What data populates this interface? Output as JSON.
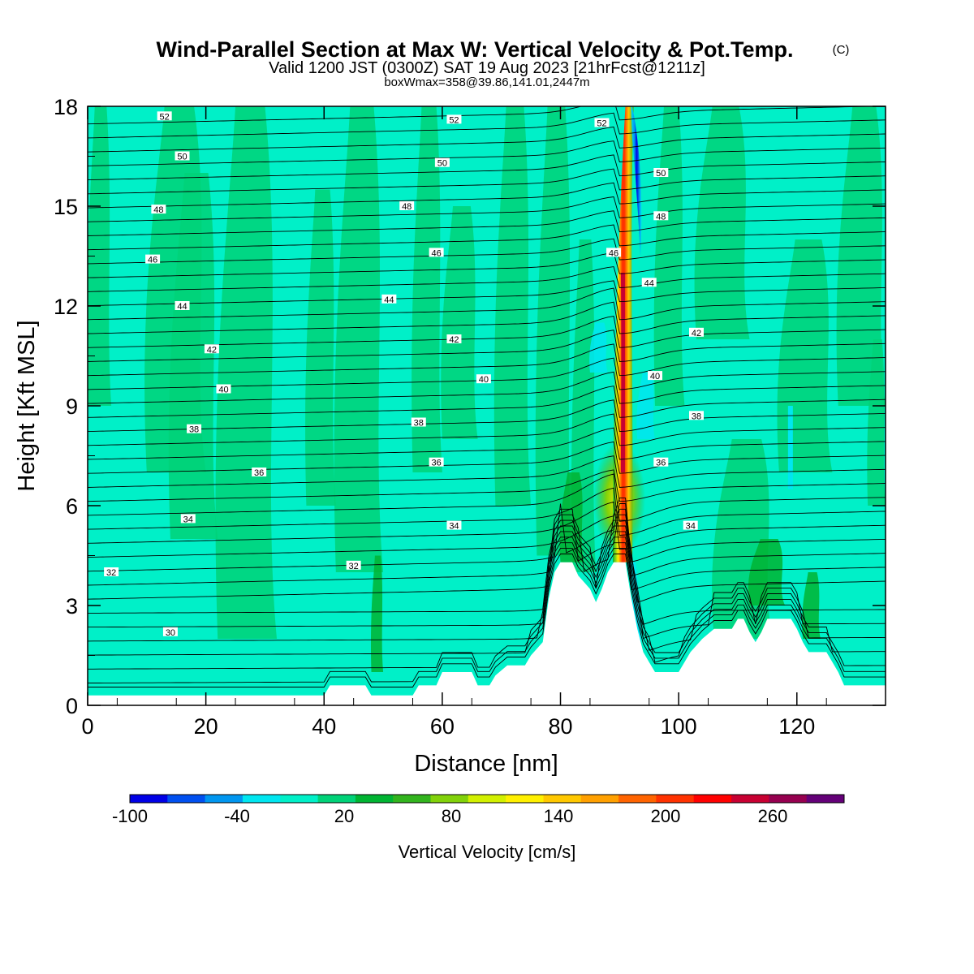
{
  "title": {
    "main": "Wind-Parallel Section at Max W: Vertical Velocity & Pot.Temp.",
    "copyright": "(C)",
    "line2": "Valid 1200 JST (0300Z) SAT 19 Aug 2023 [21hrFcst@1211z]",
    "line3": "boxWmax=358@39.86,141.01,2447m"
  },
  "chart_data": {
    "type": "heatmap",
    "title": "Wind-Parallel Section at Max W: Vertical Velocity & Pot.Temp.",
    "xlabel": "Distance [nm]",
    "ylabel": "Height [Kft MSL]",
    "xlim": [
      0,
      135
    ],
    "ylim": [
      0,
      18
    ],
    "x_ticks": [
      "0",
      "20",
      "40",
      "60",
      "80",
      "100",
      "120"
    ],
    "y_ticks": [
      "0",
      "3",
      "6",
      "9",
      "12",
      "15",
      "18"
    ],
    "colorbar": {
      "label": "Vertical Velocity [cm/s]",
      "min": -100,
      "max": 300,
      "ticks": [
        "-100",
        "-40",
        "20",
        "80",
        "140",
        "200",
        "260"
      ],
      "colors": [
        "#0000e6",
        "#0050f0",
        "#0096f0",
        "#00e6f0",
        "#00f0c8",
        "#00d278",
        "#00b432",
        "#32b41e",
        "#82d20a",
        "#d2f000",
        "#fff000",
        "#ffc800",
        "#ffa000",
        "#ff6400",
        "#ff3200",
        "#ff0000",
        "#c80032",
        "#960050",
        "#640078"
      ]
    },
    "max_updraft": {
      "value": 358,
      "lat": 39.86,
      "lon": 141.01,
      "height_m": 2447,
      "x_nm": 90.5
    },
    "terrain_height_kft": [
      [
        0,
        0.3
      ],
      [
        40,
        0.3
      ],
      [
        41,
        0.6
      ],
      [
        47,
        0.6
      ],
      [
        48,
        0.3
      ],
      [
        55,
        0.3
      ],
      [
        56,
        0.6
      ],
      [
        59,
        0.6
      ],
      [
        60,
        1.0
      ],
      [
        65,
        1.0
      ],
      [
        66,
        0.6
      ],
      [
        68,
        0.6
      ],
      [
        69,
        0.9
      ],
      [
        71,
        1.2
      ],
      [
        74,
        1.2
      ],
      [
        75,
        1.5
      ],
      [
        77,
        1.9
      ],
      [
        78,
        3.2
      ],
      [
        79,
        4.0
      ],
      [
        80,
        4.3
      ],
      [
        82,
        4.3
      ],
      [
        83,
        3.9
      ],
      [
        85,
        3.5
      ],
      [
        86,
        3.1
      ],
      [
        87,
        3.5
      ],
      [
        88,
        4.0
      ],
      [
        89,
        4.3
      ],
      [
        91,
        4.3
      ],
      [
        92,
        3.2
      ],
      [
        93,
        2.3
      ],
      [
        94,
        1.6
      ],
      [
        95,
        1.3
      ],
      [
        96,
        1.0
      ],
      [
        100,
        1.0
      ],
      [
        101,
        1.3
      ],
      [
        102,
        1.6
      ],
      [
        104,
        2.0
      ],
      [
        106,
        2.3
      ],
      [
        109,
        2.3
      ],
      [
        110,
        2.6
      ],
      [
        111,
        2.6
      ],
      [
        112,
        2.2
      ],
      [
        113,
        1.9
      ],
      [
        114,
        2.2
      ],
      [
        115,
        2.6
      ],
      [
        119,
        2.6
      ],
      [
        120,
        2.3
      ],
      [
        121,
        1.9
      ],
      [
        122,
        1.6
      ],
      [
        125,
        1.6
      ],
      [
        126,
        1.3
      ],
      [
        127,
        1.0
      ],
      [
        128,
        0.6
      ],
      [
        135,
        0.6
      ]
    ],
    "isentropes": {
      "levels": [
        30,
        32,
        34,
        36,
        38,
        40,
        42,
        44,
        46,
        48,
        50,
        52
      ],
      "labels": [
        {
          "text": "30",
          "x": 14,
          "y": 2.2
        },
        {
          "text": "32",
          "x": 4,
          "y": 4.0
        },
        {
          "text": "32",
          "x": 45,
          "y": 4.2
        },
        {
          "text": "34",
          "x": 17,
          "y": 5.6
        },
        {
          "text": "34",
          "x": 62,
          "y": 5.4
        },
        {
          "text": "34",
          "x": 102,
          "y": 5.4
        },
        {
          "text": "36",
          "x": 29,
          "y": 7.0
        },
        {
          "text": "36",
          "x": 59,
          "y": 7.3
        },
        {
          "text": "36",
          "x": 97,
          "y": 7.3
        },
        {
          "text": "38",
          "x": 18,
          "y": 8.3
        },
        {
          "text": "38",
          "x": 56,
          "y": 8.5
        },
        {
          "text": "38",
          "x": 103,
          "y": 8.7
        },
        {
          "text": "40",
          "x": 23,
          "y": 9.5
        },
        {
          "text": "40",
          "x": 67,
          "y": 9.8
        },
        {
          "text": "40",
          "x": 96,
          "y": 9.9
        },
        {
          "text": "42",
          "x": 21,
          "y": 10.7
        },
        {
          "text": "42",
          "x": 62,
          "y": 11.0
        },
        {
          "text": "42",
          "x": 103,
          "y": 11.2
        },
        {
          "text": "44",
          "x": 16,
          "y": 12.0
        },
        {
          "text": "44",
          "x": 51,
          "y": 12.2
        },
        {
          "text": "44",
          "x": 95,
          "y": 12.7
        },
        {
          "text": "46",
          "x": 11,
          "y": 13.4
        },
        {
          "text": "46",
          "x": 59,
          "y": 13.6
        },
        {
          "text": "46",
          "x": 89,
          "y": 13.6
        },
        {
          "text": "48",
          "x": 12,
          "y": 14.9
        },
        {
          "text": "48",
          "x": 54,
          "y": 15.0
        },
        {
          "text": "48",
          "x": 97,
          "y": 14.7
        },
        {
          "text": "50",
          "x": 16,
          "y": 16.5
        },
        {
          "text": "50",
          "x": 60,
          "y": 16.3
        },
        {
          "text": "50",
          "x": 97,
          "y": 16.0
        },
        {
          "text": "52",
          "x": 13,
          "y": 17.7
        },
        {
          "text": "52",
          "x": 62,
          "y": 17.6
        },
        {
          "text": "52",
          "x": 87,
          "y": 17.5
        }
      ]
    }
  }
}
